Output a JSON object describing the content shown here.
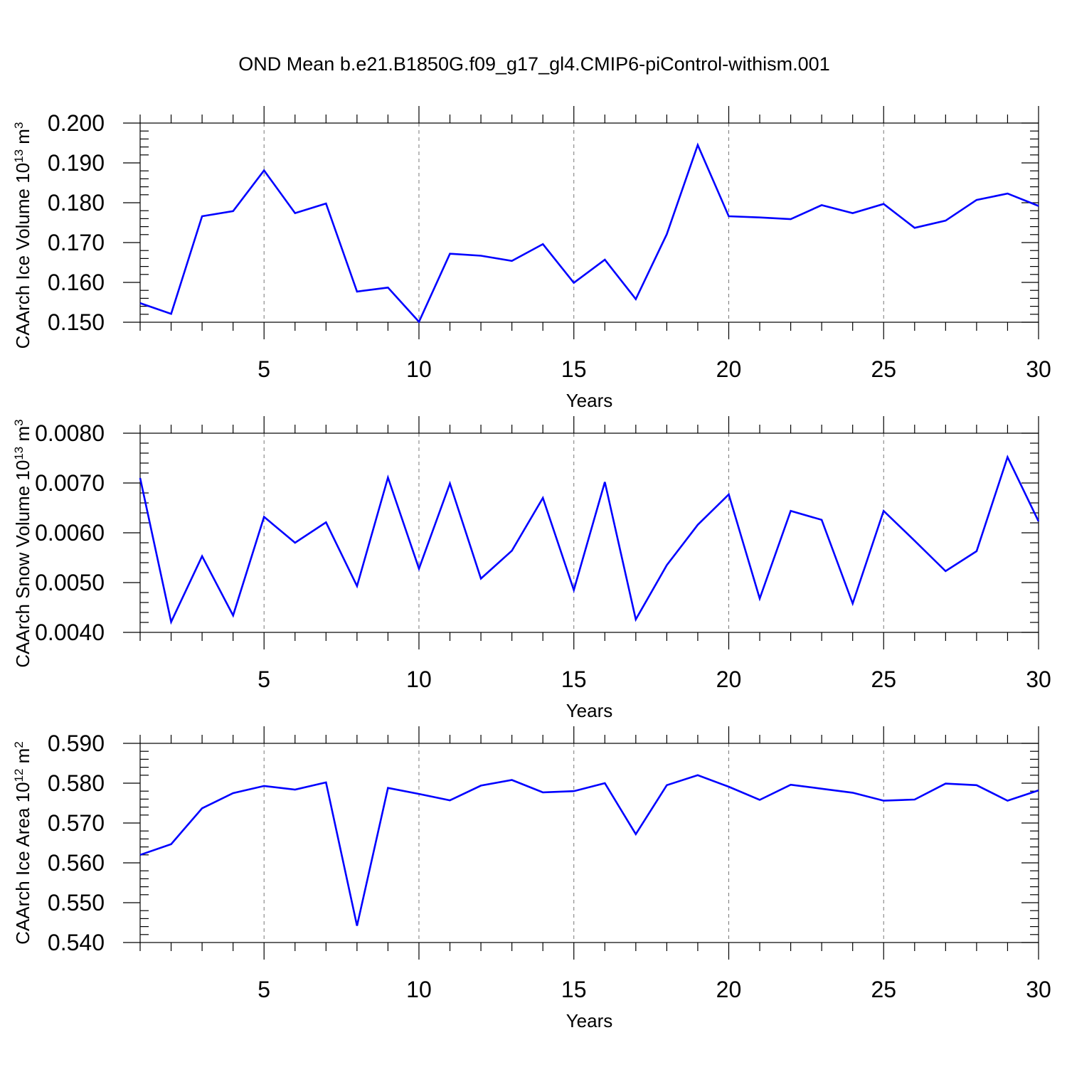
{
  "figure_title": "OND Mean b.e21.B1850G.f09_g17_gl4.CMIP6-piControl-withism.001",
  "colors": {
    "line": "#0000ff",
    "axes": "#000000",
    "grid": "#777777"
  },
  "chart_data": [
    {
      "type": "line",
      "ylabel_main": "CAArch Ice Volume 10",
      "ylabel_sup": "13",
      "ylabel_unit": " m",
      "ylabel_unit_sup": "3",
      "xlabel": "Years",
      "xlim": [
        1,
        30
      ],
      "ylim": [
        0.15,
        0.2
      ],
      "xticks": [
        5,
        10,
        15,
        20,
        25,
        30
      ],
      "xtick_labels": [
        "5",
        "10",
        "15",
        "20",
        "25",
        "30"
      ],
      "yticks": [
        0.15,
        0.16,
        0.17,
        0.18,
        0.19,
        0.2
      ],
      "ytick_labels": [
        "0.150",
        "0.160",
        "0.170",
        "0.180",
        "0.190",
        "0.200"
      ],
      "grid_x": [
        5,
        10,
        15,
        20,
        25
      ],
      "x": [
        1,
        2,
        3,
        4,
        5,
        6,
        7,
        8,
        9,
        10,
        11,
        12,
        13,
        14,
        15,
        16,
        17,
        18,
        19,
        20,
        21,
        22,
        23,
        24,
        25,
        26,
        27,
        28,
        29,
        30
      ],
      "values": [
        0.1548,
        0.1521,
        0.1766,
        0.1779,
        0.1881,
        0.1774,
        0.1798,
        0.1577,
        0.1587,
        0.1501,
        0.1672,
        0.1667,
        0.1654,
        0.1696,
        0.1599,
        0.1657,
        0.1558,
        0.1721,
        0.1945,
        0.1766,
        0.1763,
        0.1759,
        0.1794,
        0.1774,
        0.1797,
        0.1737,
        0.1755,
        0.1807,
        0.1823,
        0.1792
      ]
    },
    {
      "type": "line",
      "ylabel_main": "CAArch Snow Volume 10",
      "ylabel_sup": "13",
      "ylabel_unit": " m",
      "ylabel_unit_sup": "3",
      "xlabel": "Years",
      "xlim": [
        1,
        30
      ],
      "ylim": [
        0.004,
        0.008
      ],
      "xticks": [
        5,
        10,
        15,
        20,
        25,
        30
      ],
      "xtick_labels": [
        "5",
        "10",
        "15",
        "20",
        "25",
        "30"
      ],
      "yticks": [
        0.004,
        0.005,
        0.006,
        0.007,
        0.008
      ],
      "ytick_labels": [
        "0.0040",
        "0.0050",
        "0.0060",
        "0.0070",
        "0.0080"
      ],
      "grid_x": [
        5,
        10,
        15,
        20,
        25
      ],
      "x": [
        1,
        2,
        3,
        4,
        5,
        6,
        7,
        8,
        9,
        10,
        11,
        12,
        13,
        14,
        15,
        16,
        17,
        18,
        19,
        20,
        21,
        22,
        23,
        24,
        25,
        26,
        27,
        28,
        29,
        30
      ],
      "values": [
        0.0071,
        0.00421,
        0.00553,
        0.00434,
        0.00632,
        0.0058,
        0.00621,
        0.00493,
        0.00711,
        0.00528,
        0.00699,
        0.00508,
        0.00564,
        0.0067,
        0.00485,
        0.00702,
        0.00426,
        0.00535,
        0.00616,
        0.00677,
        0.00468,
        0.00644,
        0.00626,
        0.00458,
        0.00644,
        0.00584,
        0.00523,
        0.00563,
        0.00752,
        0.00623
      ]
    },
    {
      "type": "line",
      "ylabel_main": "CAArch Ice Area 10",
      "ylabel_sup": "12",
      "ylabel_unit": " m",
      "ylabel_unit_sup": "2",
      "xlabel": "Years",
      "xlim": [
        1,
        30
      ],
      "ylim": [
        0.54,
        0.59
      ],
      "xticks": [
        5,
        10,
        15,
        20,
        25,
        30
      ],
      "xtick_labels": [
        "5",
        "10",
        "15",
        "20",
        "25",
        "30"
      ],
      "yticks": [
        0.54,
        0.55,
        0.56,
        0.57,
        0.58,
        0.59
      ],
      "ytick_labels": [
        "0.540",
        "0.550",
        "0.560",
        "0.570",
        "0.580",
        "0.590"
      ],
      "grid_x": [
        5,
        10,
        15,
        20,
        25
      ],
      "x": [
        1,
        2,
        3,
        4,
        5,
        6,
        7,
        8,
        9,
        10,
        11,
        12,
        13,
        14,
        15,
        16,
        17,
        18,
        19,
        20,
        21,
        22,
        23,
        24,
        25,
        26,
        27,
        28,
        29,
        30
      ],
      "values": [
        0.562,
        0.5647,
        0.5737,
        0.5775,
        0.5793,
        0.5784,
        0.5802,
        0.5442,
        0.5788,
        0.5773,
        0.5757,
        0.5794,
        0.5808,
        0.5777,
        0.578,
        0.58,
        0.5672,
        0.5795,
        0.582,
        0.5791,
        0.5758,
        0.5796,
        0.5786,
        0.5776,
        0.5756,
        0.5759,
        0.5799,
        0.5795,
        0.5756,
        0.5782
      ]
    }
  ]
}
